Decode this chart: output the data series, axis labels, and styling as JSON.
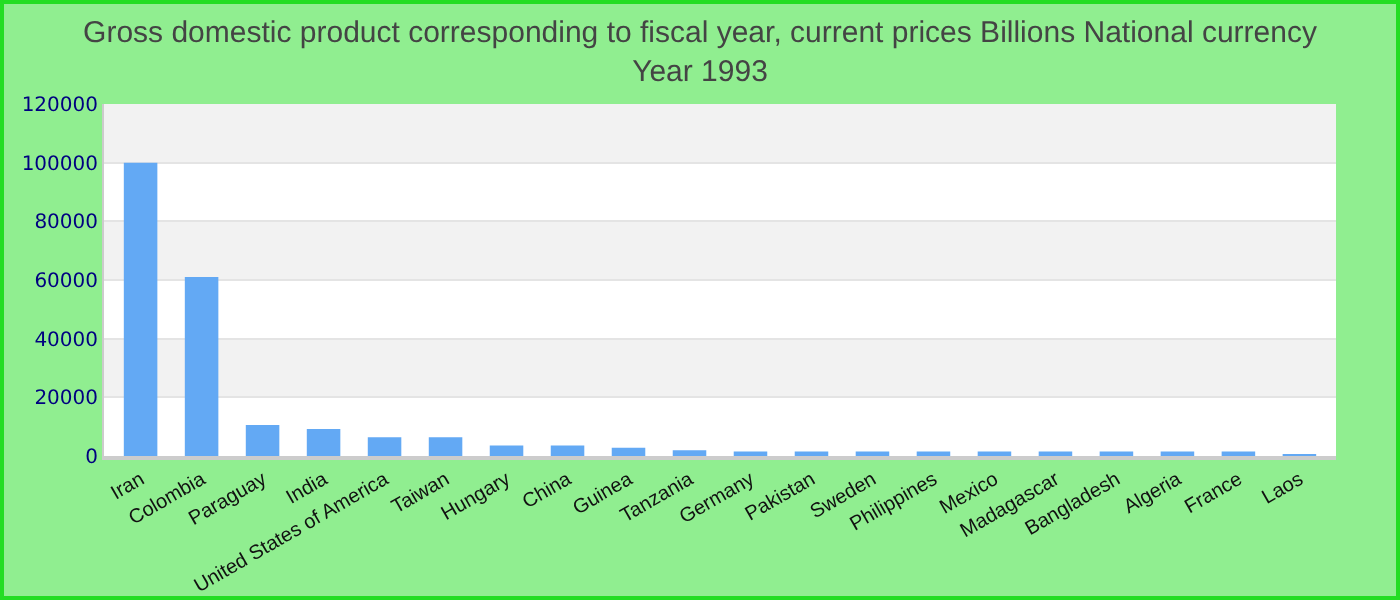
{
  "chart_data": {
    "type": "bar",
    "title": "Gross domestic product corresponding to fiscal year, current prices Billions National currency",
    "subtitle": "Year 1993",
    "categories": [
      "Iran",
      "Colombia",
      "Paraguay",
      "India",
      "United States of America",
      "Taiwan",
      "Hungary",
      "China",
      "Guinea",
      "Tanzania",
      "Germany",
      "Pakistan",
      "Sweden",
      "Philippines",
      "Mexico",
      "Madagascar",
      "Bangladesh",
      "Algeria",
      "France",
      "Laos"
    ],
    "values": [
      100000,
      61000,
      10600,
      9200,
      6400,
      6400,
      3600,
      3600,
      2800,
      2000,
      1500,
      1500,
      1500,
      1500,
      1500,
      1500,
      1500,
      1500,
      1500,
      500
    ],
    "color": "#63a9f4",
    "ylim": [
      0,
      120000
    ],
    "yticks": [
      0,
      20000,
      40000,
      60000,
      80000,
      100000,
      120000
    ],
    "grid": "y",
    "legend": false
  }
}
